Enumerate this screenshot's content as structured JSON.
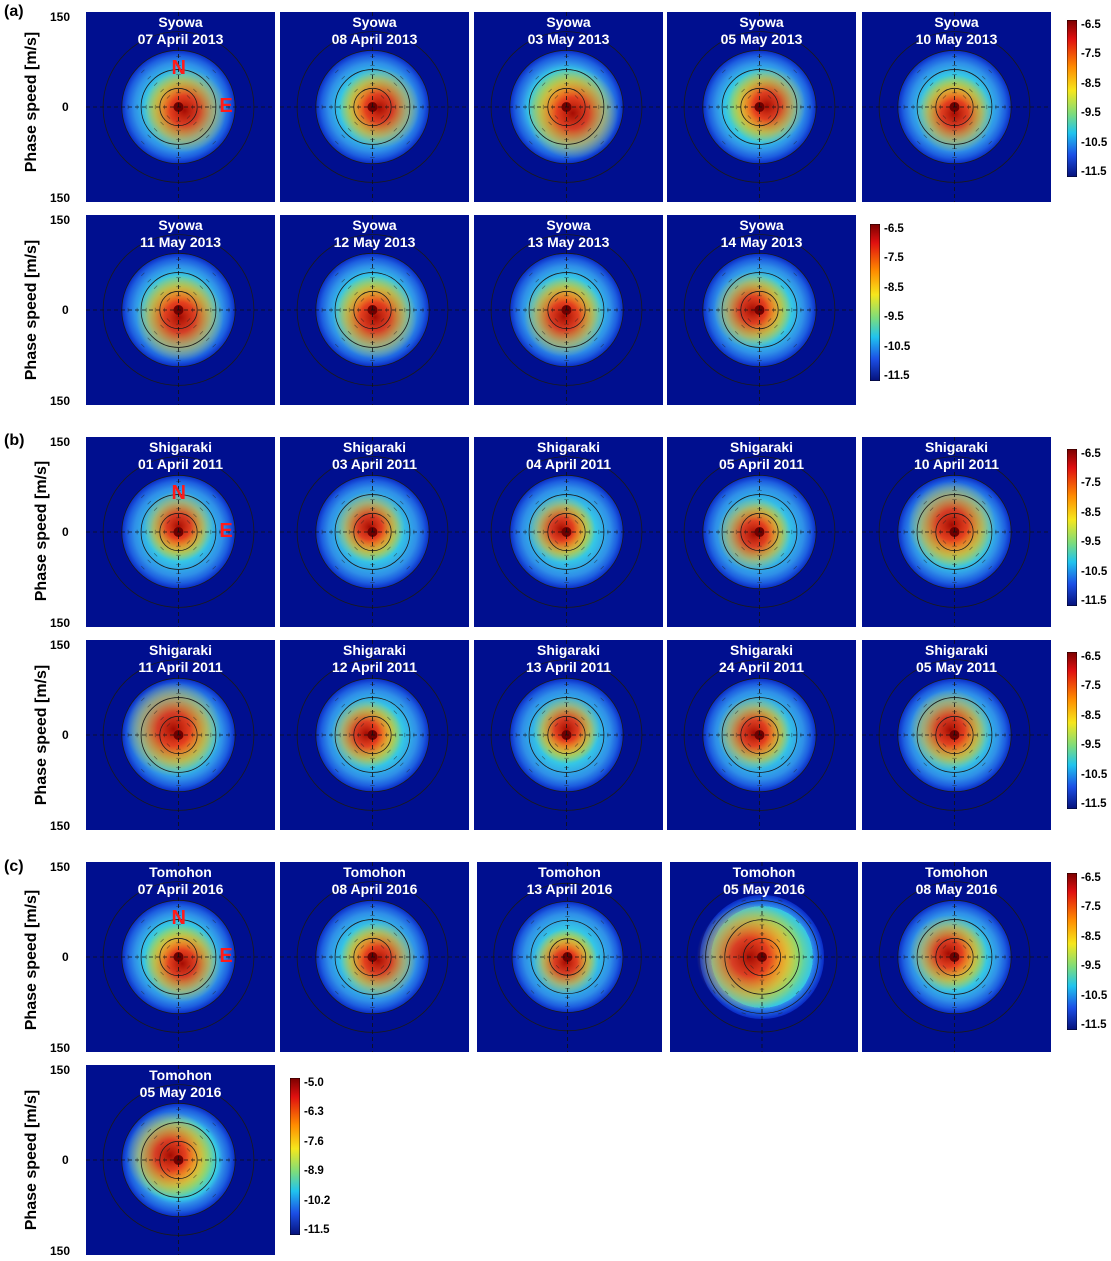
{
  "sections": [
    {
      "id": "a",
      "tag": "(a)",
      "rows": [
        {
          "panels": [
            {
              "site": "Syowa",
              "date": "07 April 2013",
              "peak_angle_deg": 120,
              "peak_intensity": 0.65,
              "spread": 0.55
            },
            {
              "site": "Syowa",
              "date": "08 April 2013",
              "peak_angle_deg": 100,
              "peak_intensity": 0.6,
              "spread": 0.55
            },
            {
              "site": "Syowa",
              "date": "03 May 2013",
              "peak_angle_deg": 135,
              "peak_intensity": 0.75,
              "spread": 0.7
            },
            {
              "site": "Syowa",
              "date": "05 May 2013",
              "peak_angle_deg": 80,
              "peak_intensity": 0.55,
              "spread": 0.6
            },
            {
              "site": "Syowa",
              "date": "10 May 2013",
              "peak_angle_deg": 180,
              "peak_intensity": 0.55,
              "spread": 0.55
            }
          ]
        },
        {
          "panels": [
            {
              "site": "Syowa",
              "date": "11 May 2013",
              "peak_angle_deg": 170,
              "peak_intensity": 0.7,
              "spread": 0.6
            },
            {
              "site": "Syowa",
              "date": "12 May 2013",
              "peak_angle_deg": 160,
              "peak_intensity": 0.65,
              "spread": 0.6
            },
            {
              "site": "Syowa",
              "date": "13 May 2013",
              "peak_angle_deg": 200,
              "peak_intensity": 0.6,
              "spread": 0.55
            },
            {
              "site": "Syowa",
              "date": "14 May 2013",
              "peak_angle_deg": 270,
              "peak_intensity": 0.55,
              "spread": 0.55
            }
          ]
        }
      ],
      "colorbars": [
        {
          "ticks": [
            "-6.5",
            "-7.5",
            "-8.5",
            "-9.5",
            "-10.5",
            "-11.5"
          ]
        },
        {
          "ticks": [
            "-6.5",
            "-7.5",
            "-8.5",
            "-9.5",
            "-10.5",
            "-11.5"
          ]
        }
      ],
      "direction_marks": {
        "north": "N",
        "east": "E"
      }
    },
    {
      "id": "b",
      "tag": "(b)",
      "rows": [
        {
          "panels": [
            {
              "site": "Shigaraki",
              "date": "01 April 2011",
              "peak_angle_deg": 0,
              "peak_intensity": 0.45,
              "spread": 0.45
            },
            {
              "site": "Shigaraki",
              "date": "03 April 2011",
              "peak_angle_deg": 330,
              "peak_intensity": 0.45,
              "spread": 0.45
            },
            {
              "site": "Shigaraki",
              "date": "04 April 2011",
              "peak_angle_deg": 300,
              "peak_intensity": 0.4,
              "spread": 0.45
            },
            {
              "site": "Shigaraki",
              "date": "05 April 2011",
              "peak_angle_deg": 250,
              "peak_intensity": 0.5,
              "spread": 0.45
            },
            {
              "site": "Shigaraki",
              "date": "10 April 2011",
              "peak_angle_deg": 340,
              "peak_intensity": 0.7,
              "spread": 0.6
            }
          ]
        },
        {
          "panels": [
            {
              "site": "Shigaraki",
              "date": "11 April 2011",
              "peak_angle_deg": 320,
              "peak_intensity": 0.8,
              "spread": 0.6
            },
            {
              "site": "Shigaraki",
              "date": "12 April 2011",
              "peak_angle_deg": 280,
              "peak_intensity": 0.45,
              "spread": 0.5
            },
            {
              "site": "Shigaraki",
              "date": "13 April 2011",
              "peak_angle_deg": 0,
              "peak_intensity": 0.4,
              "spread": 0.45
            },
            {
              "site": "Shigaraki",
              "date": "24 April 2011",
              "peak_angle_deg": 290,
              "peak_intensity": 0.5,
              "spread": 0.45
            },
            {
              "site": "Shigaraki",
              "date": "05 May 2011",
              "peak_angle_deg": 320,
              "peak_intensity": 0.6,
              "spread": 0.5
            }
          ]
        }
      ],
      "colorbars": [
        {
          "ticks": [
            "-6.5",
            "-7.5",
            "-8.5",
            "-9.5",
            "-10.5",
            "-11.5"
          ]
        },
        {
          "ticks": [
            "-6.5",
            "-7.5",
            "-8.5",
            "-9.5",
            "-10.5",
            "-11.5"
          ]
        }
      ],
      "direction_marks": {
        "north": "N",
        "east": "E"
      }
    },
    {
      "id": "c",
      "tag": "(c)",
      "rows": [
        {
          "panels": [
            {
              "site": "Tomohon",
              "date": "07 April 2016",
              "peak_angle_deg": 150,
              "peak_intensity": 0.55,
              "spread": 0.6
            },
            {
              "site": "Tomohon",
              "date": "08 April 2016",
              "peak_angle_deg": 120,
              "peak_intensity": 0.55,
              "spread": 0.5
            },
            {
              "site": "Tomohon",
              "date": "13 April 2016",
              "peak_angle_deg": 200,
              "peak_intensity": 0.4,
              "spread": 0.45
            },
            {
              "site": "Tomohon",
              "date": "05 May 2016",
              "peak_angle_deg": 270,
              "peak_intensity": 1.0,
              "spread": 0.95
            },
            {
              "site": "Tomohon",
              "date": "08 May 2016",
              "peak_angle_deg": 300,
              "peak_intensity": 0.55,
              "spread": 0.55
            }
          ]
        },
        {
          "panels": [
            {
              "site": "Tomohon",
              "date": "05 May 2016",
              "peak_angle_deg": 300,
              "peak_intensity": 0.7,
              "spread": 0.75
            }
          ]
        }
      ],
      "colorbars": [
        {
          "ticks": [
            "-6.5",
            "-7.5",
            "-8.5",
            "-9.5",
            "-10.5",
            "-11.5"
          ]
        },
        {
          "ticks": [
            "-5.0",
            "-6.3",
            "-7.6",
            "-8.9",
            "-10.2",
            "-11.5"
          ]
        }
      ],
      "direction_marks": {
        "north": "N",
        "east": "E"
      }
    }
  ],
  "y_axis": {
    "label": "Phase speed [m/s]",
    "ticks": [
      "150",
      "0",
      "150"
    ]
  },
  "chart_data": {
    "type": "heatmap",
    "title": "",
    "ylabel": "Phase speed [m/s]",
    "ylim": [
      -150,
      150
    ],
    "grid": true,
    "colormap": "jet",
    "legend": "colorbar-right",
    "colorbar_ranges": [
      [
        -11.5,
        -6.5
      ],
      [
        -11.5,
        -5.0
      ]
    ]
  }
}
